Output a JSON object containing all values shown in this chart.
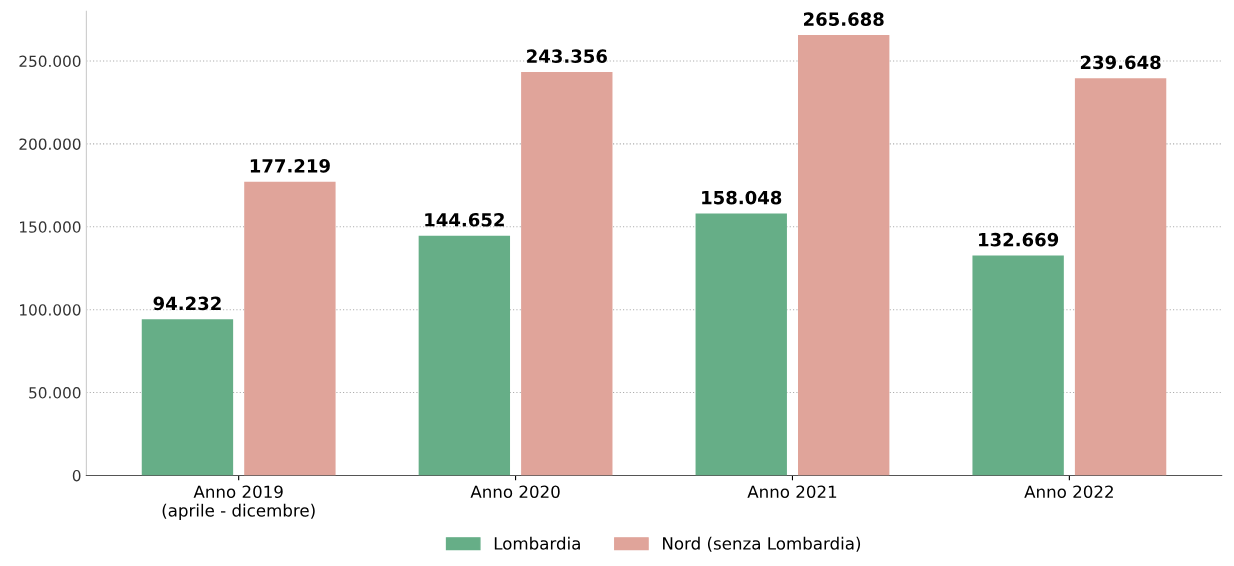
{
  "chart_data": {
    "type": "bar",
    "categories": [
      "Anno 2019\n(aprile - dicembre)",
      "Anno 2020",
      "Anno 2021",
      "Anno 2022"
    ],
    "series": [
      {
        "name": "Lombardia",
        "color": "#66ae87",
        "values": [
          94232,
          144652,
          158048,
          132669
        ]
      },
      {
        "name": "Nord (senza Lombardia)",
        "color": "#e0a49a",
        "values": [
          177219,
          243356,
          265688,
          239648
        ]
      }
    ],
    "value_labels": [
      [
        "94.232",
        "144.652",
        "158.048",
        "132.669"
      ],
      [
        "177.219",
        "243.356",
        "265.688",
        "239.648"
      ]
    ],
    "ylim": [
      0,
      280000
    ],
    "yticks": [
      {
        "value": 0,
        "label": "0"
      },
      {
        "value": 50000,
        "label": "50.000"
      },
      {
        "value": 100000,
        "label": "100.000"
      },
      {
        "value": 150000,
        "label": "150.000"
      },
      {
        "value": 200000,
        "label": "200.000"
      },
      {
        "value": 250000,
        "label": "250.000"
      }
    ],
    "grid": "y",
    "legend": "bottom"
  }
}
